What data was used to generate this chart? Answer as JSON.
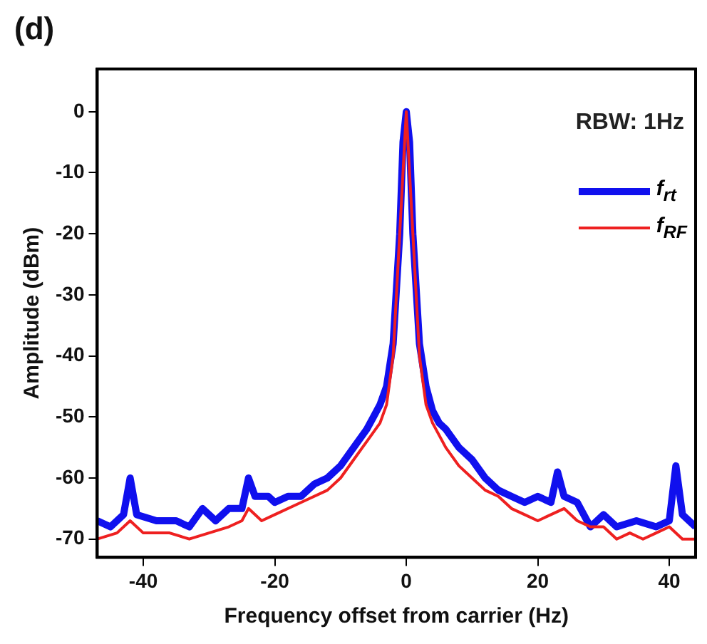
{
  "chart_data": {
    "type": "line",
    "title": "(d)",
    "xlabel": "Frequency offset from carrier (Hz)",
    "ylabel": "Amplitude (dBm)",
    "annotations": [
      "RBW: 1Hz"
    ],
    "xlim": [
      -47,
      44
    ],
    "xticks": [
      -40,
      -20,
      0,
      20,
      40
    ],
    "ylim": [
      -73,
      7
    ],
    "yticks": [
      0,
      -10,
      -20,
      -30,
      -40,
      -50,
      -60,
      -70
    ],
    "grid": false,
    "legend": "top right",
    "marker": "none",
    "line_style": "solid",
    "series": [
      {
        "name": "f$_{rt}$",
        "color": "#1010ee",
        "x": [
          -47,
          -45,
          -43,
          -42,
          -41,
          -38,
          -35,
          -33,
          -31,
          -29,
          -27,
          -25,
          -24,
          -23,
          -21,
          -20,
          -18,
          -16,
          -14,
          -12,
          -10,
          -8,
          -6,
          -5,
          -4,
          -3,
          -2,
          -1,
          -0.5,
          0,
          0.5,
          1,
          2,
          3,
          4,
          5,
          6,
          8,
          10,
          12,
          14,
          16,
          18,
          20,
          22,
          23,
          24,
          26,
          28,
          30,
          32,
          35,
          38,
          40,
          41,
          42,
          44
        ],
        "values": [
          -67,
          -68,
          -66,
          -60,
          -66,
          -67,
          -67,
          -68,
          -65,
          -67,
          -65,
          -65,
          -60,
          -63,
          -63,
          -64,
          -63,
          -63,
          -61,
          -60,
          -58,
          -55,
          -52,
          -50,
          -48,
          -45,
          -38,
          -20,
          -5,
          0,
          -5,
          -20,
          -38,
          -45,
          -49,
          -51,
          -52,
          -55,
          -57,
          -60,
          -62,
          -63,
          -64,
          -63,
          -64,
          -59,
          -63,
          -64,
          -68,
          -66,
          -68,
          -67,
          -68,
          -67,
          -58,
          -66,
          -68
        ]
      },
      {
        "name": "f$_{RF}$",
        "color": "#ee2020",
        "x": [
          -47,
          -44,
          -42,
          -40,
          -36,
          -33,
          -30,
          -27,
          -25,
          -24,
          -22,
          -20,
          -16,
          -12,
          -10,
          -8,
          -6,
          -4,
          -3,
          -2,
          -1,
          0,
          1,
          2,
          3,
          4,
          6,
          8,
          10,
          12,
          14,
          16,
          18,
          20,
          22,
          24,
          26,
          28,
          30,
          32,
          34,
          36,
          38,
          40,
          42,
          44
        ],
        "values": [
          -70,
          -69,
          -67,
          -69,
          -69,
          -70,
          -69,
          -68,
          -67,
          -65,
          -67,
          -66,
          -64,
          -62,
          -60,
          -57,
          -54,
          -51,
          -48,
          -40,
          -20,
          0,
          -20,
          -40,
          -48,
          -51,
          -55,
          -58,
          -60,
          -62,
          -63,
          -65,
          -66,
          -67,
          -66,
          -65,
          -67,
          -68,
          -68,
          -70,
          -69,
          -70,
          -69,
          -68,
          -70,
          -70
        ]
      }
    ]
  }
}
